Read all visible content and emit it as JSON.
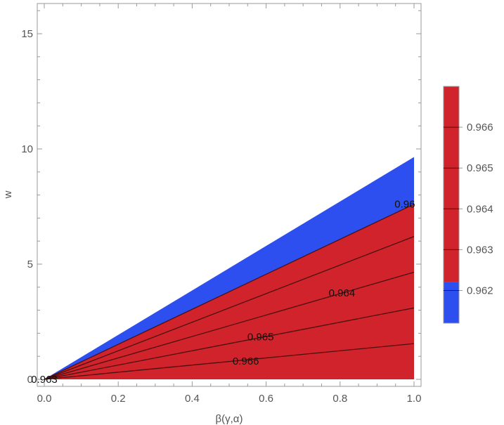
{
  "chart_data": {
    "type": "contour",
    "xlabel": "β(γ,α)",
    "ylabel": "w",
    "xlim": [
      0,
      1
    ],
    "ylim": [
      0,
      16.5
    ],
    "x_ticks": [
      0.0,
      0.2,
      0.4,
      0.6,
      0.8,
      1.0
    ],
    "x_tick_labels": [
      "0.0",
      "0.2",
      "0.4",
      "0.6",
      "0.8",
      "1.0"
    ],
    "y_ticks": [
      0,
      5,
      10,
      15
    ],
    "y_tick_labels": [
      "0",
      "5",
      "10",
      "15"
    ],
    "region_top_slope": 9.65,
    "colors": {
      "low": "#2e4fef",
      "high": "#d1232b",
      "line": "#4a1010"
    },
    "contours": [
      {
        "level": "0.962",
        "slope": 7.6
      },
      {
        "level": "0.963",
        "slope": 6.2
      },
      {
        "level": "0.964",
        "slope": 4.65
      },
      {
        "level": "0.965",
        "slope": 3.1
      },
      {
        "level": "0.966",
        "slope": 1.55
      }
    ],
    "contour_labels": [
      {
        "text": "0.96",
        "x": 0.975,
        "y": 7.6
      },
      {
        "text": "0.964",
        "x": 0.805,
        "y": 3.75
      },
      {
        "text": "0.965",
        "x": 0.585,
        "y": 1.85
      },
      {
        "text": "0.966",
        "x": 0.545,
        "y": 0.8
      },
      {
        "text": "0.963",
        "x": 0.0,
        "y": 0.0
      }
    ],
    "legend": {
      "type": "colorbar",
      "placement": "right",
      "range": [
        0.9612,
        0.967
      ],
      "blue_max": 0.9622,
      "ticks": [
        0.962,
        0.963,
        0.964,
        0.965,
        0.966
      ],
      "tick_labels": [
        "0.962",
        "0.963",
        "0.964",
        "0.965",
        "0.966"
      ]
    }
  }
}
